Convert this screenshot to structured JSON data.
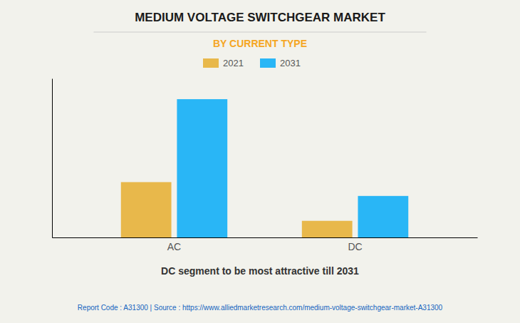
{
  "chart_data": {
    "type": "bar",
    "title": "MEDIUM VOLTAGE SWITCHGEAR MARKET",
    "subtitle": "BY CURRENT TYPE",
    "categories": [
      "AC",
      "DC"
    ],
    "series": [
      {
        "name": "2021",
        "color": "#E8B84B",
        "values": [
          40,
          12
        ]
      },
      {
        "name": "2031",
        "color": "#29B6F6",
        "values": [
          100,
          30
        ]
      }
    ],
    "ylim": [
      0,
      115
    ],
    "grid": false,
    "legend": "top",
    "tick_labels": "x",
    "xlabel": "DC segment to be most attractive till 2031",
    "annotations": [
      "Report Code : A31300  |  Source : https://www.alliedmarketresearch.com/medium-voltage-switchgear-market-A31300"
    ]
  }
}
